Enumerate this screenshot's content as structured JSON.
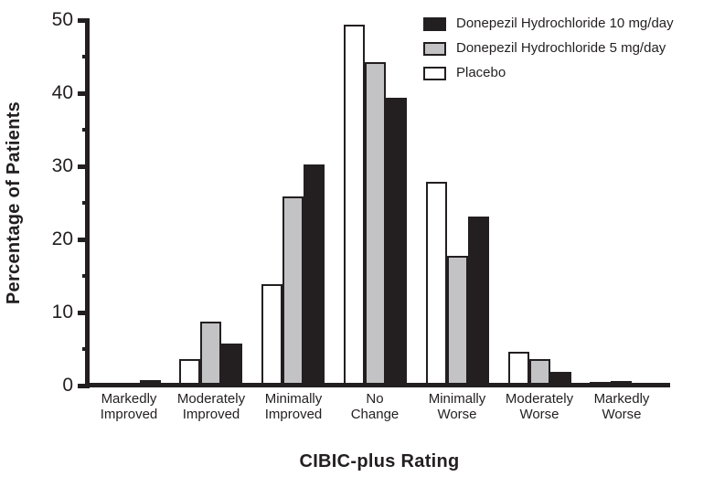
{
  "chart_data": {
    "type": "bar",
    "title": "",
    "xlabel": "CIBIC-plus Rating",
    "ylabel": "Percentage of Patients",
    "ylim": [
      0,
      50
    ],
    "yticks_major": [
      0,
      10,
      20,
      30,
      40,
      50
    ],
    "yticks_minor": [
      5,
      15,
      25,
      35,
      45
    ],
    "grid": false,
    "legend_position": "top-right",
    "categories": [
      {
        "lines": [
          "Markedly",
          "Improved"
        ]
      },
      {
        "lines": [
          "Moderately",
          "Improved"
        ]
      },
      {
        "lines": [
          "Minimally",
          "Improved"
        ]
      },
      {
        "lines": [
          "No",
          "Change"
        ]
      },
      {
        "lines": [
          "Minimally",
          "Worse"
        ]
      },
      {
        "lines": [
          "Moderately",
          "Worse"
        ]
      },
      {
        "lines": [
          "Markedly",
          "Worse"
        ]
      }
    ],
    "series": [
      {
        "name": "Placebo",
        "color": "#ffffff",
        "border": "#231f20",
        "values": [
          0,
          3.6,
          13.9,
          49.4,
          27.9,
          4.6,
          0.5
        ]
      },
      {
        "name": "Donepezil Hydrochloride 5 mg/day",
        "color": "#c3c3c5",
        "border": "#231f20",
        "values": [
          0,
          8.7,
          25.9,
          44.3,
          17.8,
          3.6,
          0.6
        ]
      },
      {
        "name": "Donepezil Hydrochloride 10 mg/day",
        "color": "#231f20",
        "border": "#231f20",
        "values": [
          0.8,
          5.8,
          30.2,
          39.4,
          23.1,
          1.9,
          0
        ]
      }
    ],
    "legend": [
      {
        "label": "Donepezil Hydrochloride 10 mg/day",
        "color": "#231f20"
      },
      {
        "label": "Donepezil Hydrochloride 5 mg/day",
        "color": "#c3c3c5"
      },
      {
        "label": "Placebo",
        "color": "#ffffff"
      }
    ],
    "colors": {
      "axis": "#231f20",
      "text": "#231f20",
      "background": "#ffffff"
    }
  }
}
